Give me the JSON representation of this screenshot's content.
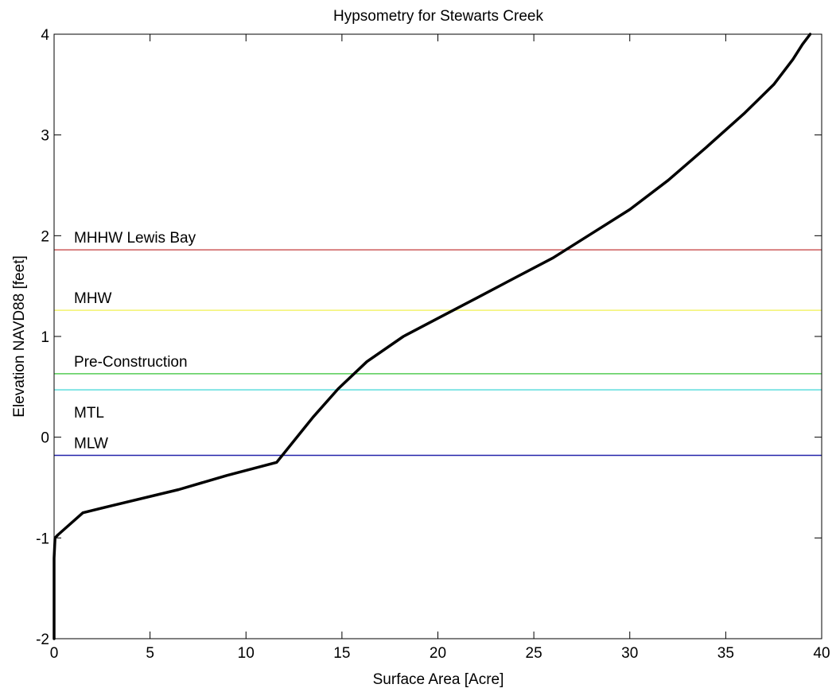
{
  "chart_data": {
    "type": "line",
    "title": "Hypsometry for Stewarts Creek",
    "xlabel": "Surface Area [Acre]",
    "ylabel": "Elevation NAVD88 [feet]",
    "xlim": [
      0,
      40
    ],
    "ylim": [
      -2,
      4
    ],
    "xticks": [
      0,
      5,
      10,
      15,
      20,
      25,
      30,
      35,
      40
    ],
    "yticks": [
      -2,
      -1,
      0,
      1,
      2,
      3,
      4
    ],
    "grid": false,
    "legend": "none",
    "curve": {
      "color": "#000000",
      "x": [
        0.0,
        0.0,
        0.05,
        0.2,
        1.5,
        3.0,
        6.5,
        9.0,
        11.6,
        13.5,
        14.8,
        16.3,
        18.2,
        20.0,
        22.0,
        24.0,
        26.0,
        28.0,
        30.0,
        32.0,
        34.0,
        36.0,
        37.5,
        38.5,
        39.0,
        39.4
      ],
      "y": [
        -2.0,
        -1.2,
        -1.0,
        -0.97,
        -0.75,
        -0.68,
        -0.52,
        -0.38,
        -0.25,
        0.2,
        0.48,
        0.75,
        1.0,
        1.18,
        1.38,
        1.58,
        1.78,
        2.02,
        2.26,
        2.55,
        2.88,
        3.22,
        3.5,
        3.75,
        3.9,
        4.0
      ]
    },
    "reference_lines": [
      {
        "label": "MHHW Lewis Bay",
        "y": 1.86,
        "color": "#cd5c5c"
      },
      {
        "label": "MHW",
        "y": 1.26,
        "color": "#f2f26e"
      },
      {
        "label": "Pre-Construction",
        "y": 0.63,
        "color": "#55cc55"
      },
      {
        "label": "MTL",
        "y": 0.47,
        "color": "#5fdede"
      },
      {
        "label": "MLW",
        "y": -0.18,
        "color": "#2222aa"
      }
    ]
  }
}
